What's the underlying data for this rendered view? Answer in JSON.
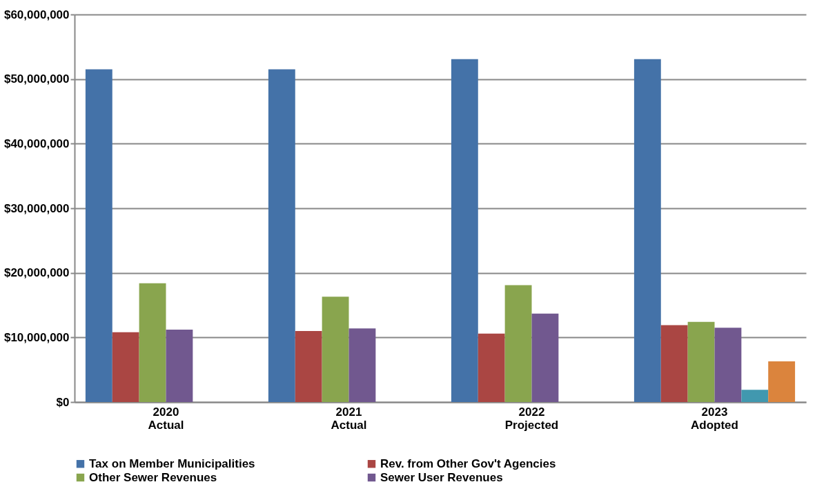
{
  "chart_data": {
    "type": "bar",
    "categories": [
      "2020\nActual",
      "2021\nActual",
      "2022\nProjected",
      "2023\nAdopted"
    ],
    "series": [
      {
        "name": "Tax on Member Municipalities",
        "color": "#4472a8",
        "values": [
          51500000,
          51500000,
          53100000,
          53100000
        ]
      },
      {
        "name": "Rev. from Other Gov't Agencies",
        "color": "#aa4643",
        "values": [
          10800000,
          11000000,
          10600000,
          11900000
        ]
      },
      {
        "name": "Other Sewer Revenues",
        "color": "#89a54e",
        "values": [
          18400000,
          16300000,
          18100000,
          12400000
        ]
      },
      {
        "name": "Sewer User Revenues",
        "color": "#71588f",
        "values": [
          11200000,
          11400000,
          13700000,
          11500000
        ]
      },
      {
        "color": "#4198af",
        "values": [
          null,
          null,
          null,
          1900000
        ]
      },
      {
        "color": "#db843d",
        "values": [
          null,
          null,
          null,
          6300000
        ]
      }
    ],
    "ylim": [
      0,
      60000000
    ],
    "yticks": [
      {
        "value": 0,
        "label": "$0"
      },
      {
        "value": 10000000,
        "label": "$10,000,000"
      },
      {
        "value": 20000000,
        "label": "$20,000,000"
      },
      {
        "value": 30000000,
        "label": "$30,000,000"
      },
      {
        "value": 40000000,
        "label": "$40,000,000"
      },
      {
        "value": 50000000,
        "label": "$50,000,000"
      },
      {
        "value": 60000000,
        "label": "$60,000,000"
      }
    ],
    "grid": "y",
    "legend": "bottom"
  }
}
